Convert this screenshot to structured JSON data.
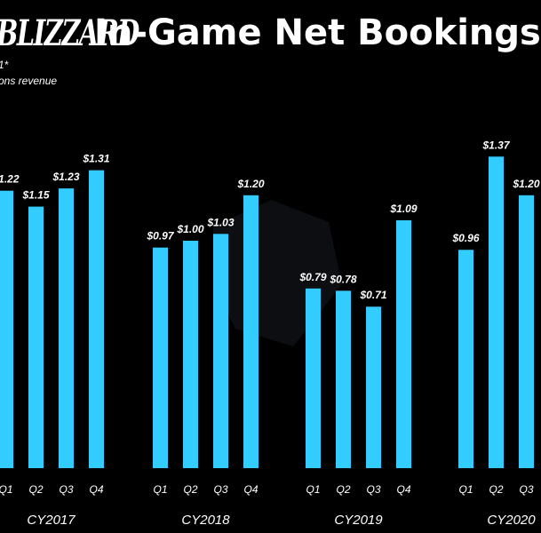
{
  "header": {
    "logo_text": "BLIZZARD",
    "title": "In-Game Net Bookings",
    "subtitle_line1": "1*",
    "subtitle_line2": "ons revenue"
  },
  "colors": {
    "background": "#000000",
    "bar": "#33ccff",
    "text": "#ffffff"
  },
  "chart_data": {
    "type": "bar",
    "title": "In-Game Net Bookings",
    "value_prefix": "$",
    "ylim": [
      0,
      1.55
    ],
    "groups": [
      {
        "name": "CY2017",
        "categories": [
          "Q1",
          "Q2",
          "Q3",
          "Q4"
        ],
        "values": [
          1.22,
          1.15,
          1.23,
          1.31
        ]
      },
      {
        "name": "CY2018",
        "categories": [
          "Q1",
          "Q2",
          "Q3",
          "Q4"
        ],
        "values": [
          0.97,
          1.0,
          1.03,
          1.2
        ]
      },
      {
        "name": "CY2019",
        "categories": [
          "Q1",
          "Q2",
          "Q3",
          "Q4"
        ],
        "values": [
          0.79,
          0.78,
          0.71,
          1.09
        ]
      },
      {
        "name": "CY2020",
        "categories": [
          "Q1",
          "Q2",
          "Q3"
        ],
        "values": [
          0.96,
          1.37,
          1.2
        ]
      }
    ],
    "grid": false,
    "legend": "none"
  }
}
